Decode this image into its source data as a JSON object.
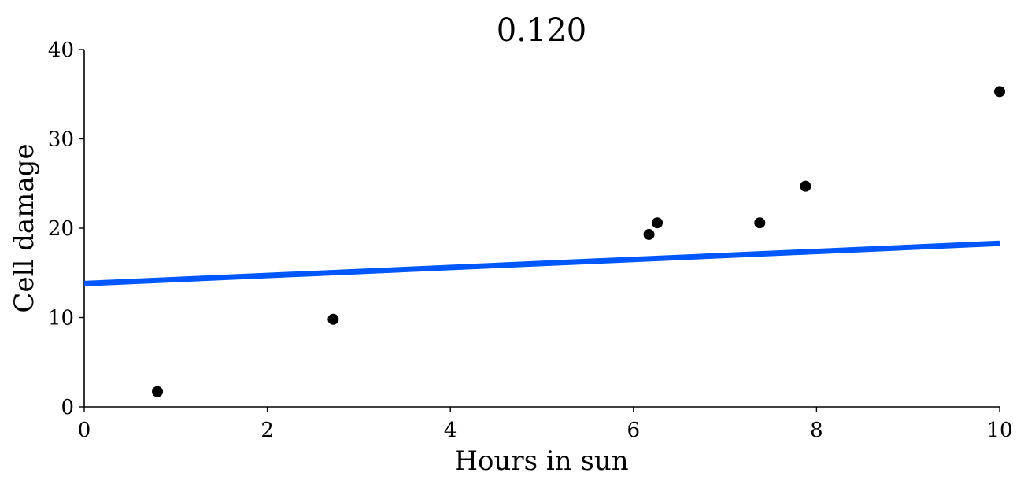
{
  "chart_data": {
    "type": "scatter",
    "title": "0.120",
    "xlabel": "Hours in sun",
    "ylabel": "Cell damage",
    "xlim": [
      0,
      10
    ],
    "ylim": [
      0,
      40
    ],
    "x_ticks": [
      0,
      2,
      4,
      6,
      8,
      10
    ],
    "y_ticks": [
      0,
      10,
      20,
      30,
      40
    ],
    "x_tick_labels": [
      "0",
      "2",
      "4",
      "6",
      "8",
      "10"
    ],
    "y_tick_labels": [
      "0",
      "10",
      "20",
      "30",
      "40"
    ],
    "grid": false,
    "points": [
      {
        "x": 0.8,
        "y": 1.7
      },
      {
        "x": 2.72,
        "y": 9.8
      },
      {
        "x": 6.17,
        "y": 19.3
      },
      {
        "x": 6.26,
        "y": 20.6
      },
      {
        "x": 7.38,
        "y": 20.6
      },
      {
        "x": 7.88,
        "y": 24.7
      },
      {
        "x": 10.0,
        "y": 35.3
      }
    ],
    "fit_line": {
      "x": [
        0,
        10
      ],
      "y": [
        13.8,
        18.3
      ]
    },
    "colors": {
      "points": "#000000",
      "line": "#0057ff",
      "axes": "#000000"
    }
  }
}
